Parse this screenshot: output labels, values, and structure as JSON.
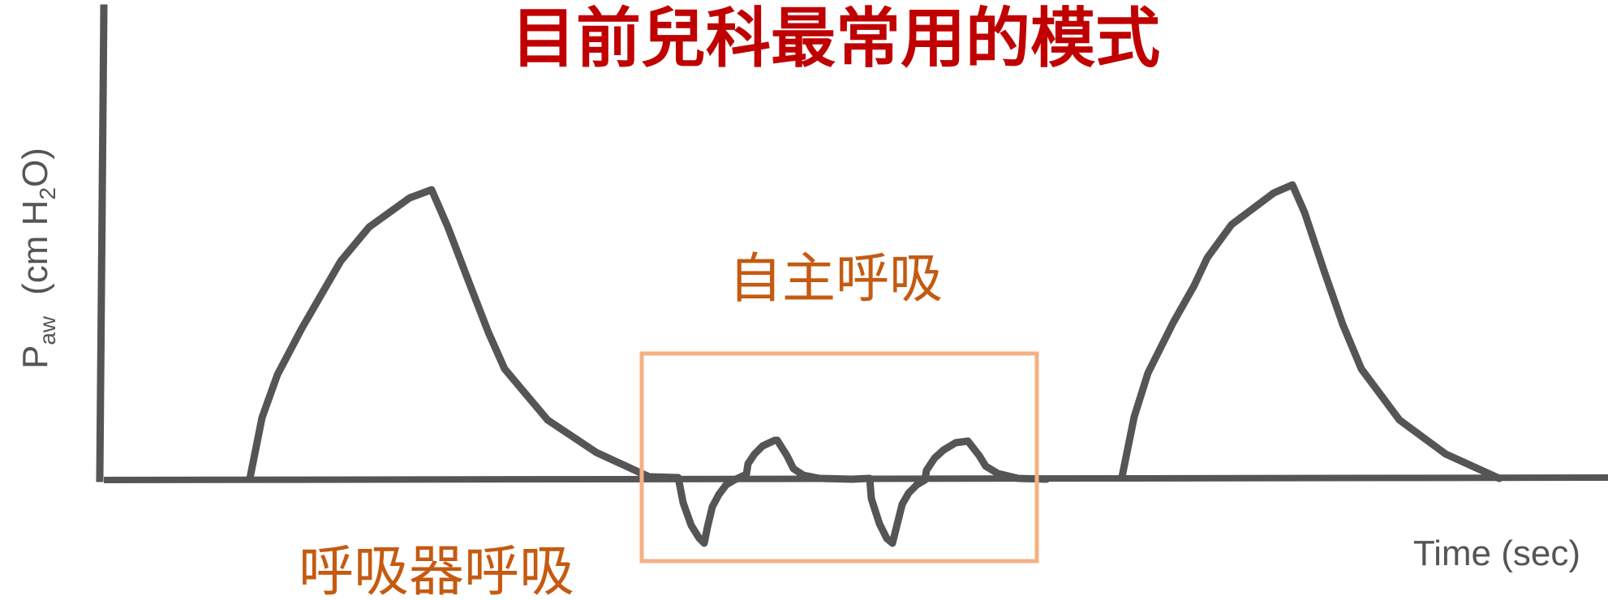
{
  "title": "目前兒科最常用的模式",
  "y_axis": {
    "main": "P",
    "sub": "aw",
    "unit_prefix": "(cm H",
    "unit_sub": "2",
    "unit_suffix": "O)"
  },
  "x_axis_label": "Time (sec)",
  "labels": {
    "spontaneous": "自主呼吸",
    "ventilator": "呼吸器呼吸"
  },
  "colors": {
    "title": "#c00000",
    "label": "#c55a11",
    "curve": "#555555",
    "box": "#f4b183",
    "axis_text": "#555555"
  }
}
